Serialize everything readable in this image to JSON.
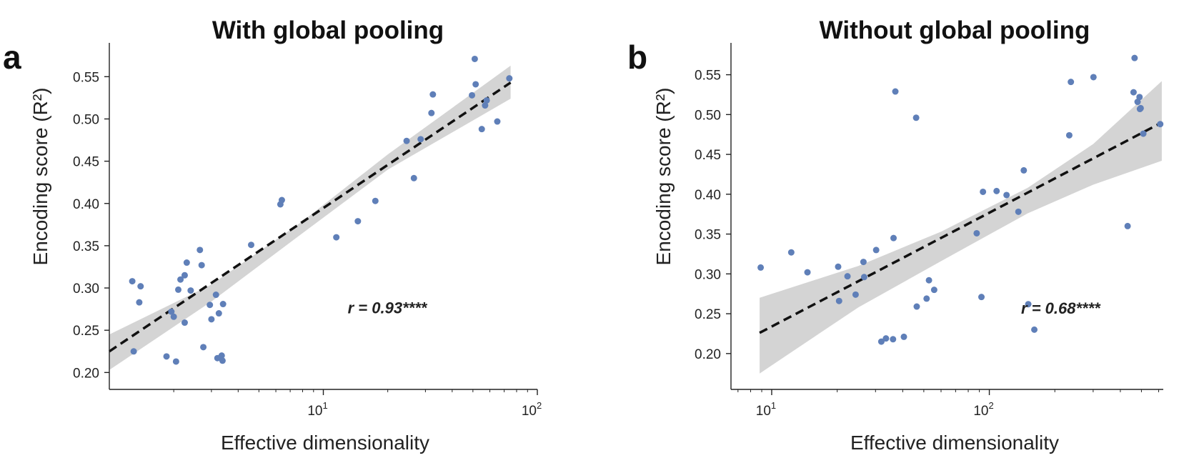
{
  "chart_data": [
    {
      "type": "scatter",
      "panel_letter": "a",
      "title": "With global pooling",
      "xlabel": "Effective dimensionality",
      "ylabel": "Encoding score (R²)",
      "x_scale": "log",
      "xlim": [
        1.0,
        100
      ],
      "ylim": [
        0.18,
        0.59
      ],
      "yticks": [
        0.2,
        0.25,
        0.3,
        0.35,
        0.4,
        0.45,
        0.5,
        0.55
      ],
      "ytick_labels": [
        "0.20",
        "0.25",
        "0.30",
        "0.35",
        "0.40",
        "0.45",
        "0.50",
        "0.55"
      ],
      "xticks": [
        10,
        100
      ],
      "xtick_labels": [
        {
          "base": "10",
          "exp": "1"
        },
        {
          "base": "10",
          "exp": "2"
        }
      ],
      "annotation": "r = 0.93****",
      "annotation_pos": {
        "x": 13,
        "y": 0.27
      },
      "point_color": "#5f7fb8",
      "regression": {
        "x_range": [
          1.0,
          75
        ],
        "y_range": [
          0.225,
          0.543
        ]
      },
      "ci_band": {
        "x": [
          1.0,
          3.0,
          8.0,
          20.0,
          75.0
        ],
        "lower": [
          0.203,
          0.284,
          0.365,
          0.44,
          0.524
        ],
        "upper": [
          0.245,
          0.304,
          0.379,
          0.458,
          0.563
        ]
      },
      "points": [
        {
          "x": 1.28,
          "y": 0.308
        },
        {
          "x": 1.38,
          "y": 0.283
        },
        {
          "x": 1.4,
          "y": 0.302
        },
        {
          "x": 1.3,
          "y": 0.225
        },
        {
          "x": 1.85,
          "y": 0.219
        },
        {
          "x": 2.05,
          "y": 0.213
        },
        {
          "x": 1.95,
          "y": 0.272
        },
        {
          "x": 2.0,
          "y": 0.266
        },
        {
          "x": 2.1,
          "y": 0.298
        },
        {
          "x": 2.15,
          "y": 0.31
        },
        {
          "x": 2.25,
          "y": 0.315
        },
        {
          "x": 2.3,
          "y": 0.33
        },
        {
          "x": 2.25,
          "y": 0.259
        },
        {
          "x": 2.4,
          "y": 0.297
        },
        {
          "x": 2.65,
          "y": 0.345
        },
        {
          "x": 2.7,
          "y": 0.327
        },
        {
          "x": 2.75,
          "y": 0.23
        },
        {
          "x": 2.95,
          "y": 0.28
        },
        {
          "x": 3.0,
          "y": 0.263
        },
        {
          "x": 3.15,
          "y": 0.292
        },
        {
          "x": 3.25,
          "y": 0.27
        },
        {
          "x": 3.2,
          "y": 0.217
        },
        {
          "x": 3.35,
          "y": 0.22
        },
        {
          "x": 3.38,
          "y": 0.214
        },
        {
          "x": 3.4,
          "y": 0.281
        },
        {
          "x": 4.6,
          "y": 0.351
        },
        {
          "x": 6.3,
          "y": 0.399
        },
        {
          "x": 6.4,
          "y": 0.404
        },
        {
          "x": 11.5,
          "y": 0.36
        },
        {
          "x": 14.5,
          "y": 0.379
        },
        {
          "x": 17.5,
          "y": 0.403
        },
        {
          "x": 24.5,
          "y": 0.474
        },
        {
          "x": 26.5,
          "y": 0.43
        },
        {
          "x": 28.5,
          "y": 0.476
        },
        {
          "x": 32.0,
          "y": 0.507
        },
        {
          "x": 32.5,
          "y": 0.529
        },
        {
          "x": 49.5,
          "y": 0.528
        },
        {
          "x": 51.0,
          "y": 0.571
        },
        {
          "x": 51.5,
          "y": 0.541
        },
        {
          "x": 55.0,
          "y": 0.488
        },
        {
          "x": 57.0,
          "y": 0.516
        },
        {
          "x": 58.0,
          "y": 0.522
        },
        {
          "x": 65.0,
          "y": 0.497
        },
        {
          "x": 74.0,
          "y": 0.548
        }
      ]
    },
    {
      "type": "scatter",
      "panel_letter": "b",
      "title": "Without global pooling",
      "xlabel": "Effective dimensionality",
      "ylabel": "Encoding score (R²)",
      "x_scale": "log",
      "xlim": [
        6.5,
        630
      ],
      "ylim": [
        0.155,
        0.59
      ],
      "yticks": [
        0.2,
        0.25,
        0.3,
        0.35,
        0.4,
        0.45,
        0.5,
        0.55
      ],
      "ytick_labels": [
        "0.20",
        "0.25",
        "0.30",
        "0.35",
        "0.40",
        "0.45",
        "0.50",
        "0.55"
      ],
      "xticks": [
        10,
        100
      ],
      "xtick_labels": [
        {
          "base": "10",
          "exp": "1"
        },
        {
          "base": "10",
          "exp": "2"
        }
      ],
      "annotation": "r = 0.68****",
      "annotation_pos": {
        "x": 140,
        "y": 0.25
      },
      "point_color": "#5f7fb8",
      "regression": {
        "x_range": [
          8.8,
          620
        ],
        "y_range": [
          0.226,
          0.49
        ]
      },
      "ci_band": {
        "x": [
          8.8,
          25.0,
          60.0,
          150.0,
          300.0,
          620.0
        ],
        "lower": [
          0.175,
          0.258,
          0.316,
          0.376,
          0.412,
          0.442
        ],
        "upper": [
          0.27,
          0.31,
          0.353,
          0.408,
          0.463,
          0.542
        ]
      },
      "points": [
        {
          "x": 8.9,
          "y": 0.308
        },
        {
          "x": 12.3,
          "y": 0.327
        },
        {
          "x": 14.6,
          "y": 0.302
        },
        {
          "x": 20.2,
          "y": 0.309
        },
        {
          "x": 20.4,
          "y": 0.266
        },
        {
          "x": 22.3,
          "y": 0.297
        },
        {
          "x": 24.3,
          "y": 0.274
        },
        {
          "x": 26.4,
          "y": 0.315
        },
        {
          "x": 26.6,
          "y": 0.296
        },
        {
          "x": 30.2,
          "y": 0.33
        },
        {
          "x": 31.9,
          "y": 0.215
        },
        {
          "x": 33.5,
          "y": 0.219
        },
        {
          "x": 36.1,
          "y": 0.218
        },
        {
          "x": 36.3,
          "y": 0.345
        },
        {
          "x": 37.0,
          "y": 0.529
        },
        {
          "x": 40.5,
          "y": 0.221
        },
        {
          "x": 46.1,
          "y": 0.496
        },
        {
          "x": 46.4,
          "y": 0.259
        },
        {
          "x": 51.5,
          "y": 0.269
        },
        {
          "x": 52.8,
          "y": 0.292
        },
        {
          "x": 55.8,
          "y": 0.28
        },
        {
          "x": 87.5,
          "y": 0.351
        },
        {
          "x": 92.0,
          "y": 0.271
        },
        {
          "x": 93.5,
          "y": 0.403
        },
        {
          "x": 108.0,
          "y": 0.404
        },
        {
          "x": 120.0,
          "y": 0.399
        },
        {
          "x": 136.0,
          "y": 0.378
        },
        {
          "x": 144.0,
          "y": 0.43
        },
        {
          "x": 151.0,
          "y": 0.262
        },
        {
          "x": 161.0,
          "y": 0.23
        },
        {
          "x": 233.0,
          "y": 0.474
        },
        {
          "x": 237.0,
          "y": 0.541
        },
        {
          "x": 301.0,
          "y": 0.547
        },
        {
          "x": 432.0,
          "y": 0.36
        },
        {
          "x": 460.0,
          "y": 0.528
        },
        {
          "x": 465.0,
          "y": 0.571
        },
        {
          "x": 480.0,
          "y": 0.516
        },
        {
          "x": 490.0,
          "y": 0.522
        },
        {
          "x": 492.0,
          "y": 0.507
        },
        {
          "x": 496.0,
          "y": 0.508
        },
        {
          "x": 510.0,
          "y": 0.476
        },
        {
          "x": 610.0,
          "y": 0.488
        }
      ]
    }
  ]
}
